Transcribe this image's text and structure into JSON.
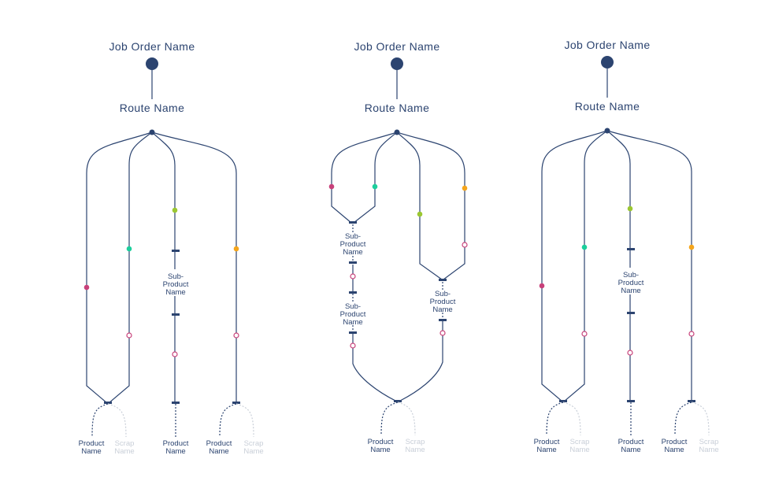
{
  "colors": {
    "ink": "#2c4470",
    "faded": "#c9cfd8",
    "magenta": "#c8417a",
    "teal": "#1ccf9c",
    "lime": "#9bc731",
    "orange": "#f4a51c",
    "hollow": "#c8417a"
  },
  "diagrams": [
    {
      "job_order_label": "Job Order Name",
      "route_label": "Route Name",
      "sub_product_labels": [
        [
          "Sub-",
          "Product",
          "Name"
        ]
      ],
      "outputs": [
        {
          "product": [
            "Product",
            "Name"
          ],
          "scrap": [
            "Scrap",
            "Name"
          ]
        },
        {
          "product": [
            "Product",
            "Name"
          ]
        },
        {
          "product": [
            "Product",
            "Name"
          ],
          "scrap": [
            "Scrap",
            "Name"
          ]
        }
      ]
    },
    {
      "job_order_label": "Job Order Name",
      "route_label": "Route Name",
      "sub_product_labels": [
        [
          "Sub-",
          "Product",
          "Name"
        ],
        [
          "Sub-",
          "Product",
          "Name"
        ],
        [
          "Sub-",
          "Product",
          "Name"
        ]
      ],
      "outputs": [
        {
          "product": [
            "Product",
            "Name"
          ],
          "scrap": [
            "Scrap",
            "Name"
          ]
        }
      ]
    },
    {
      "job_order_label": "Job Order Name",
      "route_label": "Route Name",
      "sub_product_labels": [
        [
          "Sub-",
          "Product",
          "Name"
        ]
      ],
      "outputs": [
        {
          "product": [
            "Product",
            "Name"
          ],
          "scrap": [
            "Scrap",
            "Name"
          ]
        },
        {
          "product": [
            "Product",
            "Name"
          ]
        },
        {
          "product": [
            "Product",
            "Name"
          ],
          "scrap": [
            "Scrap",
            "Name"
          ]
        }
      ]
    }
  ]
}
